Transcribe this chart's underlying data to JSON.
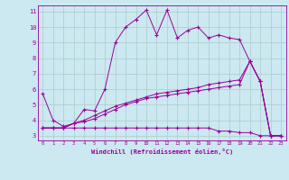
{
  "title": "",
  "xlabel": "Windchill (Refroidissement éolien,°C)",
  "background_color": "#cce8f0",
  "line_color": "#990099",
  "grid_color": "#aacccc",
  "xlim": [
    -0.5,
    23.5
  ],
  "ylim": [
    2.7,
    11.4
  ],
  "xticks": [
    0,
    1,
    2,
    3,
    4,
    5,
    6,
    7,
    8,
    9,
    10,
    11,
    12,
    13,
    14,
    15,
    16,
    17,
    18,
    19,
    20,
    21,
    22,
    23
  ],
  "yticks": [
    3,
    4,
    5,
    6,
    7,
    8,
    9,
    10,
    11
  ],
  "series": [
    [
      5.7,
      4.0,
      3.6,
      3.8,
      4.7,
      4.6,
      6.0,
      9.0,
      10.0,
      10.5,
      11.1,
      9.5,
      11.1,
      9.3,
      9.8,
      10.0,
      9.3,
      9.5,
      9.3,
      9.2,
      7.8,
      6.5,
      3.0,
      3.0
    ],
    [
      3.5,
      3.5,
      3.5,
      3.5,
      3.5,
      3.5,
      3.5,
      3.5,
      3.5,
      3.5,
      3.5,
      3.5,
      3.5,
      3.5,
      3.5,
      3.5,
      3.5,
      3.3,
      3.3,
      3.2,
      3.2,
      3.0,
      3.0,
      3.0
    ],
    [
      3.5,
      3.5,
      3.5,
      3.8,
      3.9,
      4.1,
      4.4,
      4.7,
      5.0,
      5.2,
      5.4,
      5.5,
      5.6,
      5.7,
      5.8,
      5.9,
      6.0,
      6.1,
      6.2,
      6.3,
      7.8,
      6.5,
      3.0,
      3.0
    ],
    [
      3.5,
      3.5,
      3.5,
      3.8,
      4.0,
      4.3,
      4.6,
      4.9,
      5.1,
      5.3,
      5.5,
      5.7,
      5.8,
      5.9,
      6.0,
      6.1,
      6.3,
      6.4,
      6.5,
      6.6,
      7.8,
      6.5,
      3.0,
      3.0
    ]
  ]
}
